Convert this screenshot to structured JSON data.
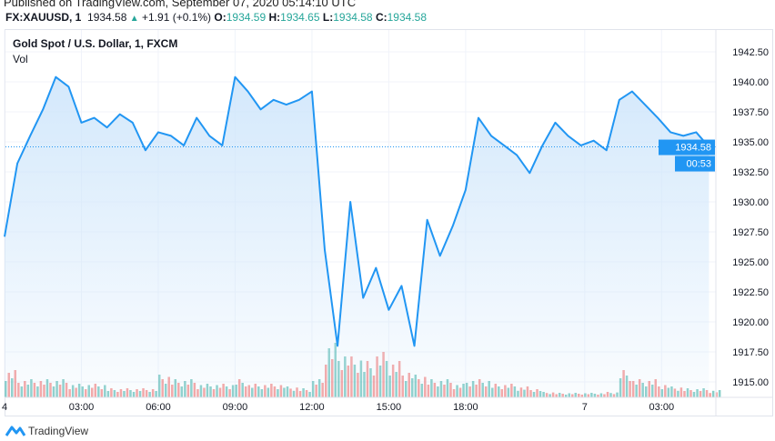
{
  "header": {
    "published": "Published on TradingView.com, September 07, 2020 05:14:10 UTC",
    "symbol": "FX:XAUUSD, 1",
    "last": "1934.58",
    "change": "+1.91 (+0.1%)",
    "open_label": "O:",
    "open": "1934.59",
    "high_label": "H:",
    "high": "1934.65",
    "low_label": "L:",
    "low": "1934.58",
    "close_label": "C:",
    "close": "1934.58"
  },
  "legend": {
    "title": "Gold Spot / U.S. Dollar, 1, FXCM",
    "volume": "Vol"
  },
  "price_tag": {
    "price": "1934.58",
    "countdown": "00:53"
  },
  "footer": {
    "brand": "TradingView"
  },
  "colors": {
    "line": "#2196f3",
    "up": "#26a69a",
    "down": "#ef5350",
    "fill": "#cfe6fb"
  },
  "chart_data": {
    "type": "area",
    "ylim": [
      1913.5,
      1944.5
    ],
    "y_ticks": [
      "1942.50",
      "1940.00",
      "1937.50",
      "1935.00",
      "1932.50",
      "1930.00",
      "1927.50",
      "1925.00",
      "1922.50",
      "1920.00",
      "1917.50",
      "1915.00"
    ],
    "x_ticks": [
      {
        "label": "4",
        "index": 0
      },
      {
        "label": "03:00",
        "index": 6
      },
      {
        "label": "06:00",
        "index": 12
      },
      {
        "label": "09:00",
        "index": 18
      },
      {
        "label": "12:00",
        "index": 24
      },
      {
        "label": "15:00",
        "index": 30
      },
      {
        "label": "18:00",
        "index": 36
      },
      {
        "label": "7",
        "index": 45.3
      },
      {
        "label": "03:00",
        "index": 51.3
      }
    ],
    "price": [
      1927.1,
      1933.2,
      1935.5,
      1937.7,
      1940.4,
      1939.6,
      1936.6,
      1937.0,
      1936.2,
      1937.3,
      1936.6,
      1934.3,
      1935.8,
      1935.5,
      1934.7,
      1937.0,
      1935.5,
      1934.7,
      1940.4,
      1939.2,
      1937.7,
      1938.5,
      1938.1,
      1938.5,
      1939.2,
      1926.0,
      1918.0,
      1930.0,
      1922.0,
      1924.5,
      1921.0,
      1923.0,
      1918.0,
      1928.5,
      1925.5,
      1928.0,
      1931.0,
      1937.0,
      1935.5,
      1934.7,
      1933.9,
      1932.4,
      1934.7,
      1936.6,
      1935.5,
      1934.7,
      1935.1,
      1934.3,
      1938.5,
      1939.2,
      1938.1,
      1937.0,
      1935.8,
      1935.5,
      1935.8,
      1934.58
    ],
    "volume": [
      3,
      2,
      2,
      2,
      2,
      1.5,
      1.5,
      1.5,
      1,
      1,
      1,
      1,
      2.5,
      2,
      2,
      1.5,
      1.5,
      1.5,
      2,
      1.5,
      1.5,
      1.5,
      1.2,
      1,
      2,
      6,
      5,
      4.5,
      4,
      5,
      4,
      3,
      2.5,
      2,
      2,
      1.5,
      2,
      2,
      1.5,
      1.5,
      1.2,
      1,
      0.6,
      0.5,
      0.5,
      0.5,
      0.5,
      0.6,
      3,
      2,
      2,
      1.5,
      1.2,
      1,
      1,
      0.8
    ]
  }
}
